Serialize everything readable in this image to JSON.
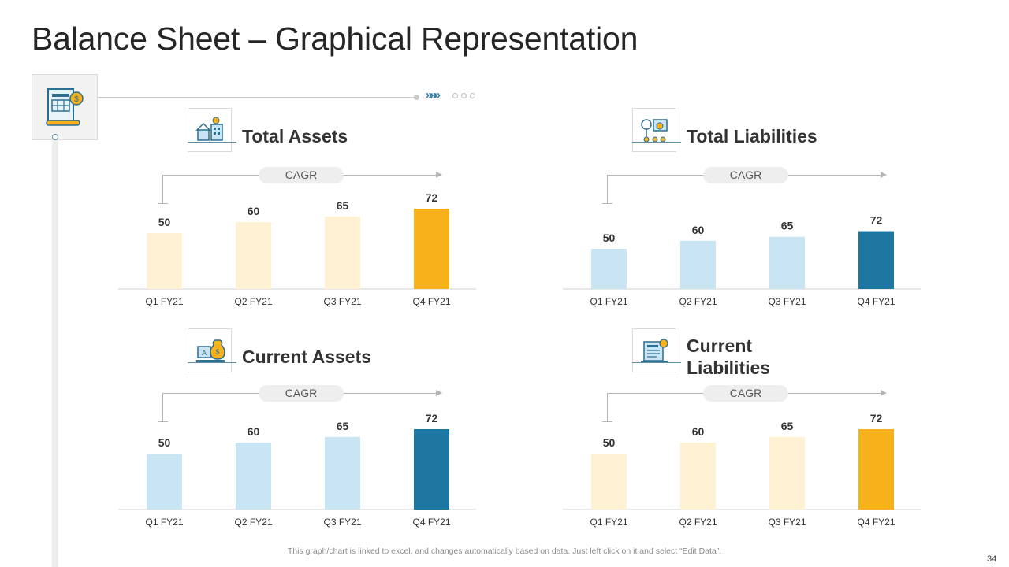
{
  "title": "Balance Sheet – Graphical Representation",
  "footer_note": "This graph/chart is linked to excel, and changes automatically based on data. Just left click on it and select “Edit Data”.",
  "page_number": "34",
  "colors": {
    "light_yellow": "#fff1d4",
    "yellow": "#f7b21b",
    "light_blue": "#c9e5f4",
    "dark_blue": "#1e77a0",
    "axis": "#d0d0d0"
  },
  "panels": [
    {
      "title": "Total Assets",
      "cagr_label": "CAGR",
      "icon": "buildings-icon"
    },
    {
      "title": "Total Liabilities",
      "cagr_label": "CAGR",
      "icon": "scale-icon"
    },
    {
      "title": "Current Assets",
      "cagr_label": "CAGR",
      "icon": "money-bag-icon"
    },
    {
      "title": "Current Liabilities",
      "cagr_label": "CAGR",
      "icon": "invoice-icon"
    }
  ],
  "chart_data": [
    {
      "type": "bar",
      "title": "Total Assets",
      "categories": [
        "Q1 FY21",
        "Q2 FY21",
        "Q3 FY21",
        "Q4 FY21"
      ],
      "values": [
        50,
        60,
        65,
        72
      ],
      "colors": [
        "#fff1d4",
        "#fff1d4",
        "#fff1d4",
        "#f7b21b"
      ],
      "ylim": [
        0,
        72
      ]
    },
    {
      "type": "bar",
      "title": "Total Liabilities",
      "categories": [
        "Q1 FY21",
        "Q2 FY21",
        "Q3 FY21",
        "Q4 FY21"
      ],
      "values": [
        50,
        60,
        65,
        72
      ],
      "colors": [
        "#c9e5f4",
        "#c9e5f4",
        "#c9e5f4",
        "#1e77a0"
      ],
      "ylim": [
        0,
        100
      ]
    },
    {
      "type": "bar",
      "title": "Current Assets",
      "categories": [
        "Q1 FY21",
        "Q2 FY21",
        "Q3 FY21",
        "Q4 FY21"
      ],
      "values": [
        50,
        60,
        65,
        72
      ],
      "colors": [
        "#c9e5f4",
        "#c9e5f4",
        "#c9e5f4",
        "#1e77a0"
      ],
      "ylim": [
        0,
        72
      ]
    },
    {
      "type": "bar",
      "title": "Current Liabilities",
      "categories": [
        "Q1 FY21",
        "Q2 FY21",
        "Q3 FY21",
        "Q4 FY21"
      ],
      "values": [
        50,
        60,
        65,
        72
      ],
      "colors": [
        "#fff1d4",
        "#fff1d4",
        "#fff1d4",
        "#f7b21b"
      ],
      "ylim": [
        0,
        72
      ]
    }
  ]
}
